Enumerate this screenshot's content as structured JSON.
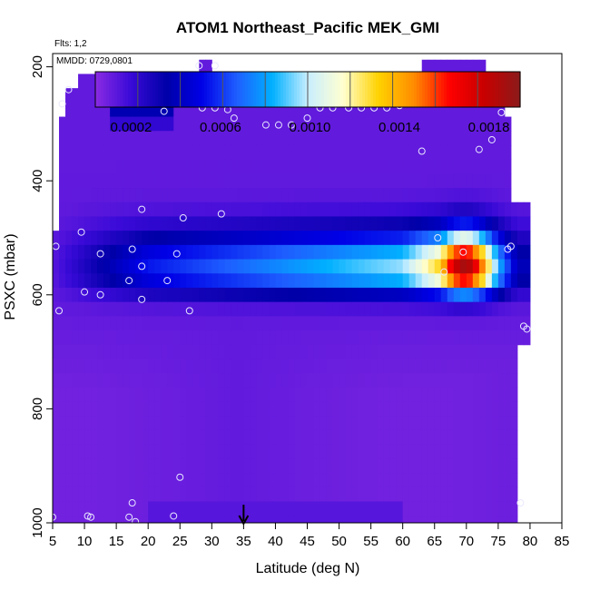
{
  "chart_data": {
    "type": "heatmap",
    "title": "ATOM1 Northeast_Pacific MEK_GMI",
    "annotations": {
      "flights": "Flts: 1,2",
      "dates": "MMDD: 0729,0801"
    },
    "xlabel": "Latitude (deg N)",
    "ylabel": "PSXC (mbar)",
    "xlim": [
      5,
      85
    ],
    "ylim": [
      1000,
      0
    ],
    "xticks": [
      "5",
      "10",
      "15",
      "20",
      "25",
      "30",
      "35",
      "40",
      "45",
      "50",
      "55",
      "60",
      "65",
      "70",
      "75",
      "80",
      "85"
    ],
    "yticks": [
      "200",
      "400",
      "600",
      "800",
      "1000"
    ],
    "colorbar": {
      "range": [
        4e-05,
        0.00194
      ],
      "ticks": [
        "0.0002",
        "0.0006",
        "0.0010",
        "0.0014",
        "0.0018"
      ],
      "tick_values": [
        0.0002,
        0.0006,
        0.001,
        0.0014,
        0.0018
      ],
      "colors": [
        "#8a2be2",
        "#3a0ad8",
        "#0000a8",
        "#0000e6",
        "#1e5eff",
        "#00b0ff",
        "#c8eeff",
        "#ffffd0",
        "#ffd200",
        "#ff8c00",
        "#ff0000",
        "#c80000",
        "#8b1a1a"
      ]
    },
    "marker": {
      "latitude": 35,
      "symbol": "arrow"
    },
    "levels_mbar": [
      200,
      225,
      250,
      275,
      300,
      325,
      350,
      375,
      400,
      425,
      450,
      475,
      500,
      525,
      550,
      575,
      600,
      625,
      650,
      675,
      700,
      725,
      750,
      775,
      800,
      825,
      850,
      875,
      900,
      925,
      950,
      975,
      1000
    ],
    "profile": {
      "latitudes": [
        5,
        20,
        35,
        50,
        60,
        66,
        68,
        70,
        72,
        75,
        78
      ],
      "values_at_550_mbar": [
        0.00014,
        0.00055,
        0.0007,
        0.00085,
        0.00095,
        0.0013,
        0.00175,
        0.0019,
        0.0016,
        0.00085,
        0.0004
      ]
    },
    "sample_points": [
      [
        7.5,
        240
      ],
      [
        6.5,
        265
      ],
      [
        15,
        240
      ],
      [
        15,
        262
      ],
      [
        21.5,
        217
      ],
      [
        22.5,
        278
      ],
      [
        28,
        198
      ],
      [
        30.5,
        198
      ],
      [
        28.5,
        272
      ],
      [
        30.5,
        272
      ],
      [
        32.5,
        275
      ],
      [
        33.5,
        290
      ],
      [
        38.5,
        302
      ],
      [
        40.5,
        302
      ],
      [
        42.5,
        302
      ],
      [
        45,
        290
      ],
      [
        47,
        272
      ],
      [
        49,
        272
      ],
      [
        51.5,
        272
      ],
      [
        53.5,
        272
      ],
      [
        55.5,
        272
      ],
      [
        57.5,
        272
      ],
      [
        59.5,
        268
      ],
      [
        61.5,
        255
      ],
      [
        63.5,
        255
      ],
      [
        65.5,
        255
      ],
      [
        67.5,
        255
      ],
      [
        69.5,
        255
      ],
      [
        70.5,
        255
      ],
      [
        66.5,
        218
      ],
      [
        74,
        262
      ],
      [
        75.5,
        262
      ],
      [
        75.5,
        280
      ],
      [
        74,
        328
      ],
      [
        72,
        345
      ],
      [
        63,
        348
      ],
      [
        19,
        450
      ],
      [
        25.5,
        465
      ],
      [
        31.5,
        458
      ],
      [
        9.5,
        490
      ],
      [
        5.5,
        515
      ],
      [
        12.5,
        528
      ],
      [
        17.5,
        520
      ],
      [
        24.5,
        528
      ],
      [
        19,
        550
      ],
      [
        17,
        575
      ],
      [
        23,
        575
      ],
      [
        10,
        595
      ],
      [
        12.5,
        600
      ],
      [
        19,
        608
      ],
      [
        6,
        628
      ],
      [
        26.5,
        628
      ],
      [
        65.5,
        500
      ],
      [
        66.5,
        560
      ],
      [
        69.5,
        525
      ],
      [
        76.5,
        520
      ],
      [
        77,
        515
      ],
      [
        79,
        655
      ],
      [
        79.5,
        660
      ],
      [
        25,
        920
      ],
      [
        17.5,
        965
      ],
      [
        78.5,
        965
      ],
      [
        5,
        990
      ],
      [
        10.5,
        988
      ],
      [
        11,
        990
      ],
      [
        17,
        990
      ],
      [
        18,
        998
      ],
      [
        24,
        988
      ]
    ]
  }
}
